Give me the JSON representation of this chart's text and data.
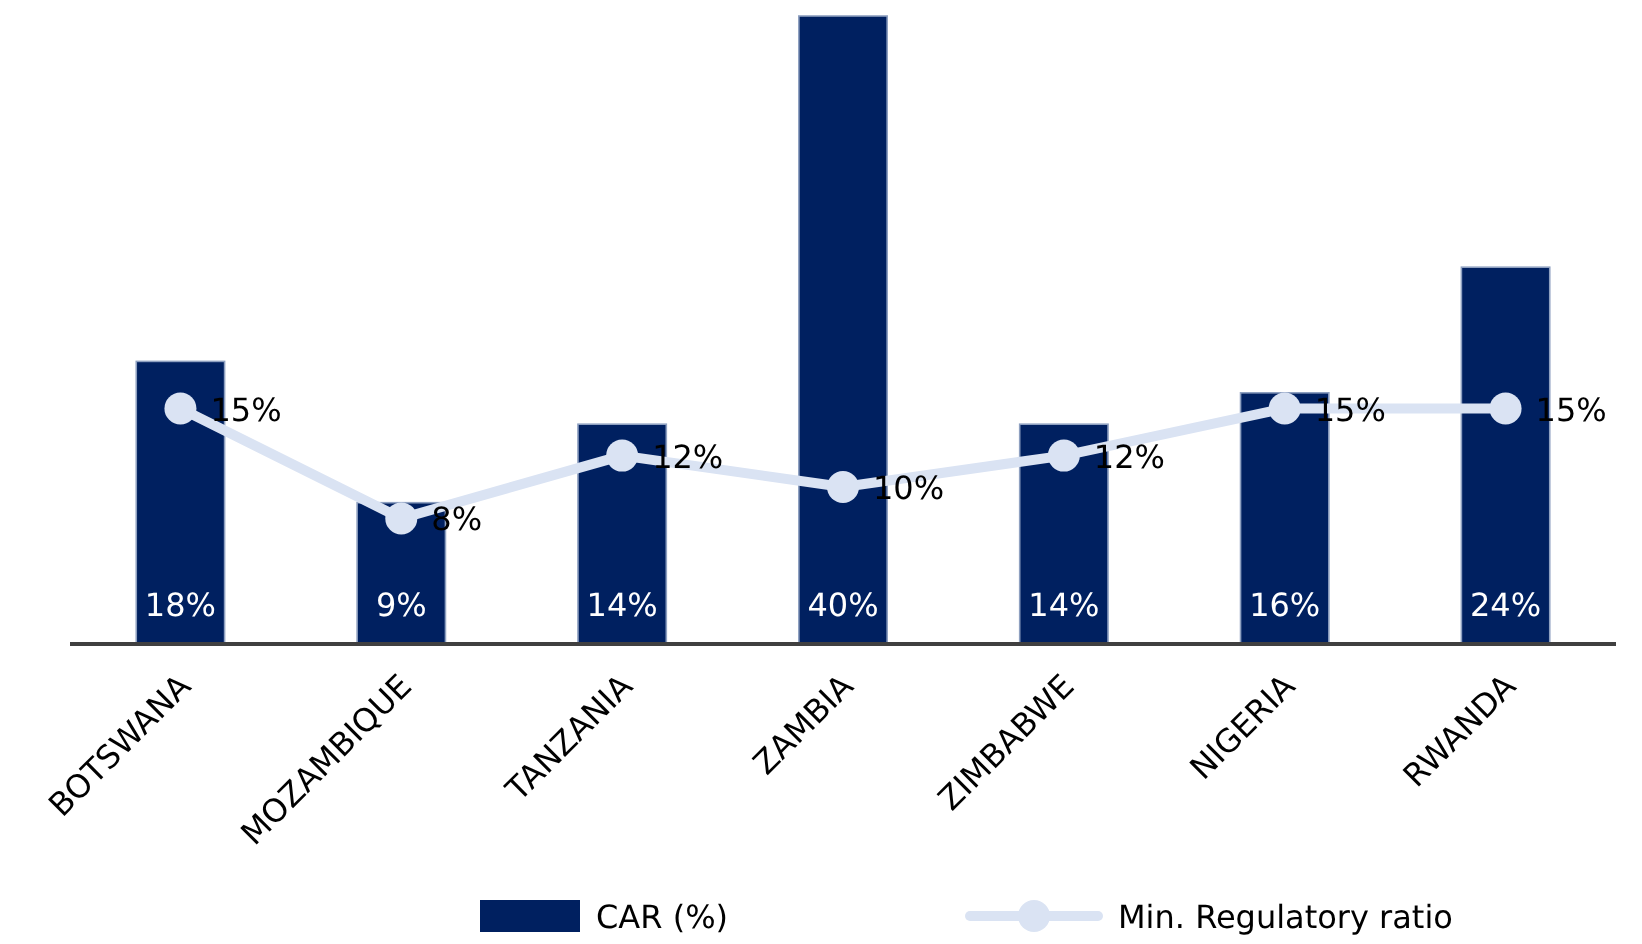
{
  "chart_data": {
    "type": "bar",
    "categories": [
      "BOTSWANA",
      "MOZAMBIQUE",
      "TANZANIA",
      "ZAMBIA",
      "ZIMBABWE",
      "NIGERIA",
      "RWANDA"
    ],
    "series": [
      {
        "name": "CAR (%)",
        "color": "#002060",
        "values": [
          18,
          9,
          14,
          40,
          14,
          16,
          24
        ],
        "value_labels": [
          "18%",
          "9%",
          "14%",
          "40%",
          "14%",
          "16%",
          "24%"
        ]
      },
      {
        "name": "Min. Regulatory ratio",
        "type": "line",
        "color": "#dae3f3",
        "values": [
          15,
          8,
          12,
          10,
          12,
          15,
          15
        ],
        "value_labels": [
          "15%",
          "8%",
          "12%",
          "10%",
          "12%",
          "15%",
          "15%"
        ]
      }
    ],
    "legend": "bottom",
    "marker": "circle",
    "tick_labels": "x"
  }
}
